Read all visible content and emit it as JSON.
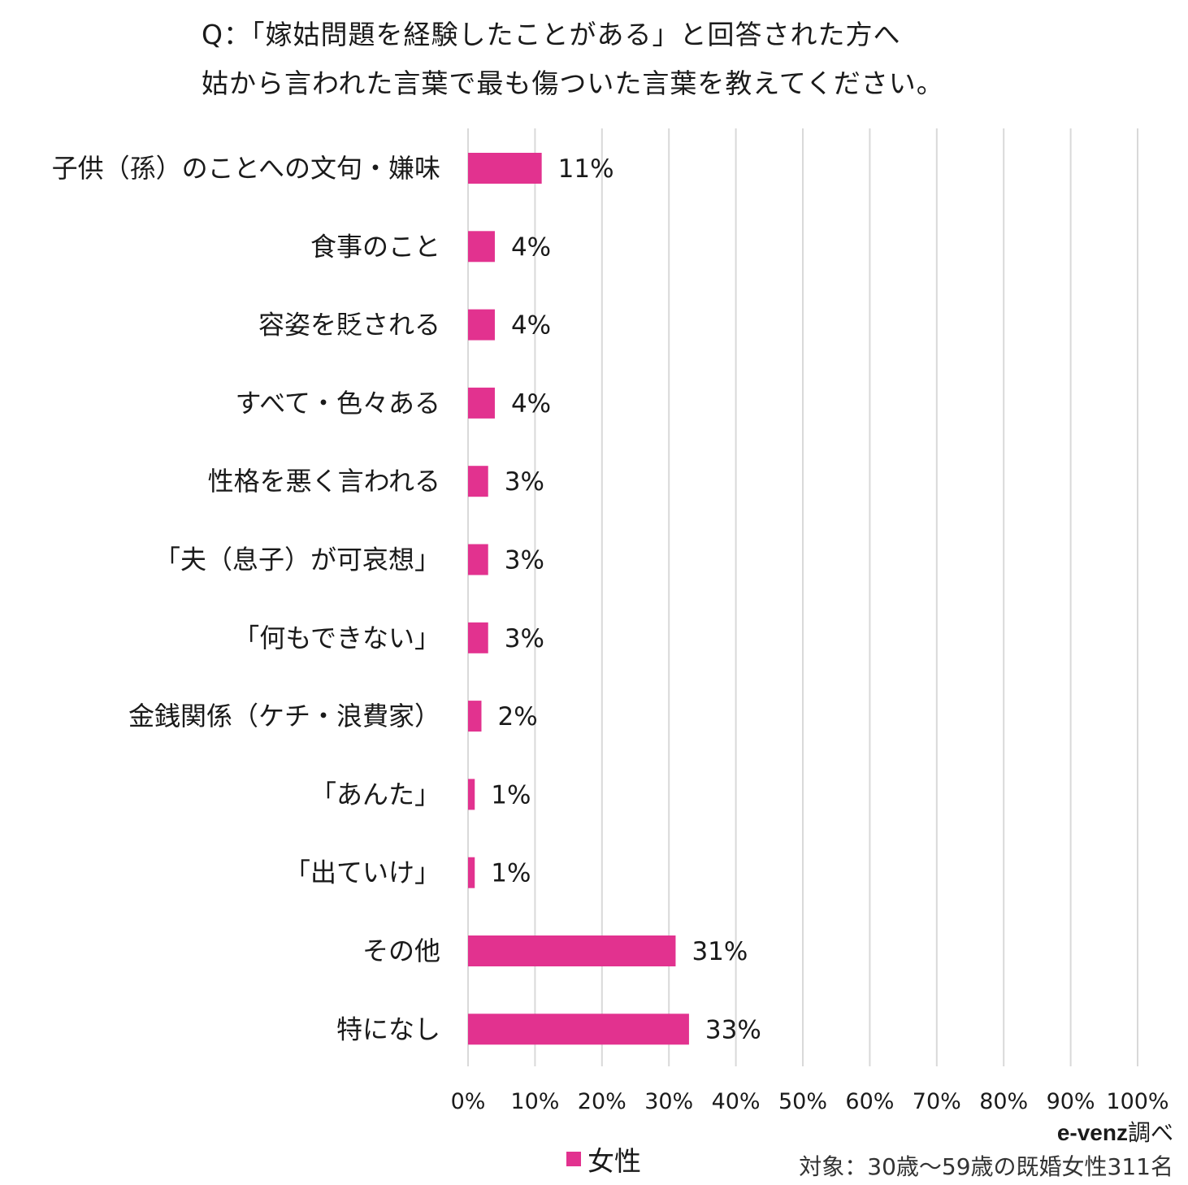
{
  "title_line1": "Q：「嫁姑問題を経験したことがある」と回答された方へ",
  "title_line2": "姑から言われた言葉で最も傷ついた言葉を教えてください。",
  "legend_label": "女性",
  "source_brand": "e-venz",
  "source_suffix": "調べ",
  "target_note": "対象：30歳〜59歳の既婚女性311名",
  "colors": {
    "bar": "#e2328f",
    "grid": "#d9d9d9"
  },
  "chart_data": {
    "type": "bar",
    "orientation": "horizontal",
    "categories": [
      "子供（孫）のことへの文句・嫌味",
      "食事のこと",
      "容姿を貶される",
      "すべて・色々ある",
      "性格を悪く言われる",
      "「夫（息子）が可哀想」",
      "「何もできない」",
      "金銭関係（ケチ・浪費家）",
      "「あんた」",
      "「出ていけ」",
      "その他",
      "特になし"
    ],
    "series": [
      {
        "name": "女性",
        "values": [
          11,
          4,
          4,
          4,
          3,
          3,
          3,
          2,
          1,
          1,
          31,
          33
        ]
      }
    ],
    "value_labels": [
      "11%",
      "4%",
      "4%",
      "4%",
      "3%",
      "3%",
      "3%",
      "2%",
      "1%",
      "1%",
      "31%",
      "33%"
    ],
    "xlim": [
      0,
      100
    ],
    "xticks": [
      0,
      10,
      20,
      30,
      40,
      50,
      60,
      70,
      80,
      90,
      100
    ],
    "xtick_labels": [
      "0%",
      "10%",
      "20%",
      "30%",
      "40%",
      "50%",
      "60%",
      "70%",
      "80%",
      "90%",
      "100%"
    ],
    "grid": true,
    "legend_position": "bottom"
  }
}
